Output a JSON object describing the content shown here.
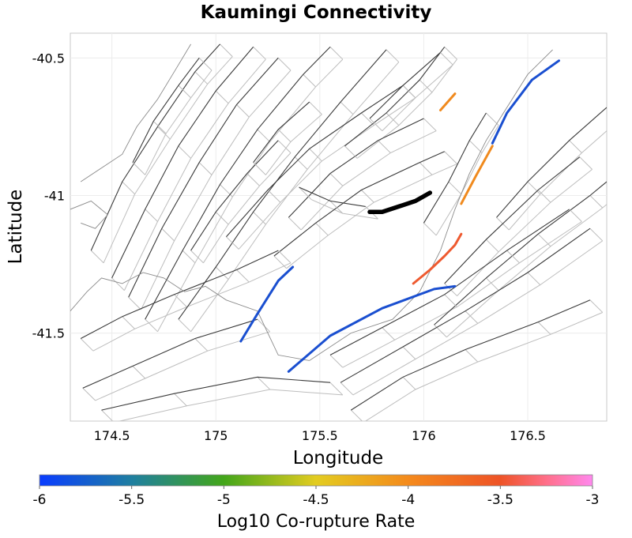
{
  "chart_data": {
    "type": "map",
    "title": "Kaumingi Connectivity",
    "xlabel": "Longitude",
    "ylabel": "Latitude",
    "xlim": [
      174.3,
      176.88
    ],
    "ylim": [
      -41.82,
      -40.41
    ],
    "x_ticks": [
      {
        "value": 174.5,
        "label": "174.5"
      },
      {
        "value": 175,
        "label": "175"
      },
      {
        "value": 175.5,
        "label": "175.5"
      },
      {
        "value": 176,
        "label": "176"
      },
      {
        "value": 176.5,
        "label": "176.5"
      }
    ],
    "y_ticks": [
      {
        "value": -40.5,
        "label": "-40.5"
      },
      {
        "value": -41,
        "label": "-41"
      },
      {
        "value": -41.5,
        "label": "-41.5"
      }
    ],
    "grid": true,
    "source_fault": {
      "name": "Kaumingi",
      "color": "#000000",
      "points": [
        [
          175.74,
          -41.06
        ],
        [
          175.8,
          -41.06
        ],
        [
          175.88,
          -41.04
        ],
        [
          175.96,
          -41.02
        ],
        [
          176.03,
          -40.99
        ]
      ]
    },
    "ruptures": [
      {
        "log10_rate": -5.9,
        "color": "#1a4fd0",
        "points": [
          [
            176.33,
            -40.81
          ],
          [
            176.4,
            -40.7
          ],
          [
            176.52,
            -40.58
          ],
          [
            176.65,
            -40.51
          ]
        ]
      },
      {
        "log10_rate": -5.9,
        "color": "#1a4fd0",
        "points": [
          [
            175.12,
            -41.53
          ],
          [
            175.2,
            -41.43
          ],
          [
            175.3,
            -41.31
          ],
          [
            175.37,
            -41.26
          ]
        ]
      },
      {
        "log10_rate": -5.9,
        "color": "#1a4fd0",
        "points": [
          [
            175.35,
            -41.64
          ],
          [
            175.55,
            -41.51
          ],
          [
            175.8,
            -41.41
          ],
          [
            176.05,
            -41.34
          ],
          [
            176.15,
            -41.33
          ]
        ]
      },
      {
        "log10_rate": -4.1,
        "color": "#f08a1e",
        "points": [
          [
            176.18,
            -41.03
          ],
          [
            176.25,
            -40.93
          ],
          [
            176.33,
            -40.82
          ]
        ]
      },
      {
        "log10_rate": -4.1,
        "color": "#f08a1e",
        "points": [
          [
            176.08,
            -40.69
          ],
          [
            176.15,
            -40.63
          ]
        ]
      },
      {
        "log10_rate": -3.8,
        "color": "#ee5a30",
        "points": [
          [
            175.95,
            -41.32
          ],
          [
            176.03,
            -41.27
          ],
          [
            176.1,
            -41.22
          ],
          [
            176.15,
            -41.18
          ],
          [
            176.18,
            -41.14
          ]
        ]
      }
    ],
    "colorbar": {
      "title": "Log10 Co-rupture Rate",
      "min": -6,
      "max": -3,
      "ticks": [
        {
          "value": -6,
          "label": "-6"
        },
        {
          "value": -5.5,
          "label": "-5.5"
        },
        {
          "value": -5,
          "label": "-5"
        },
        {
          "value": -4.5,
          "label": "-4.5"
        },
        {
          "value": -4,
          "label": "-4"
        },
        {
          "value": -3.5,
          "label": "-3.5"
        },
        {
          "value": -3,
          "label": "-3"
        }
      ],
      "stops": [
        {
          "value": -6,
          "color": "#0a3cff"
        },
        {
          "value": -5.5,
          "color": "#1f7fa0"
        },
        {
          "value": -5,
          "color": "#43a61a"
        },
        {
          "value": -4.5,
          "color": "#e3cc20"
        },
        {
          "value": -4,
          "color": "#f48a1c"
        },
        {
          "value": -3.5,
          "color": "#ee5326"
        },
        {
          "value": -3.25,
          "color": "#ff6f8a"
        },
        {
          "value": -3,
          "color": "#ff88ee"
        }
      ]
    }
  }
}
